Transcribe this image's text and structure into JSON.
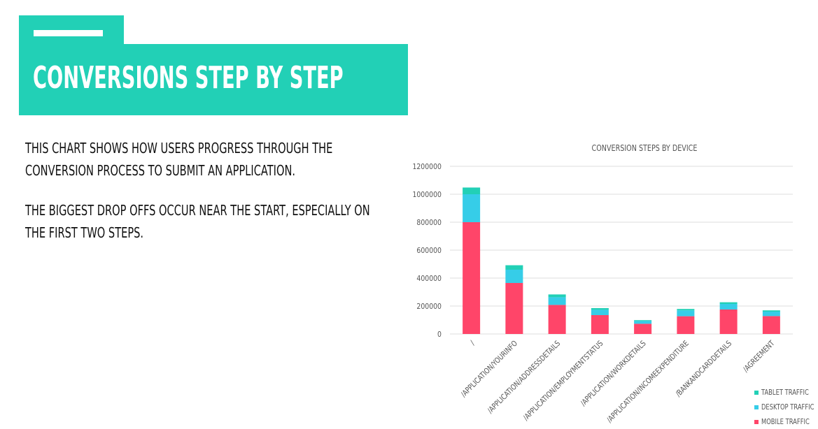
{
  "slide": {
    "title": "CONVERSIONS STEP BY STEP",
    "paragraphs": [
      "THIS CHART SHOWS HOW USERS PROGRESS THROUGH THE",
      "CONVERSION PROCESS TO SUBMIT AN APPLICATION.",
      "THE BIGGEST DROP OFFS OCCUR NEAR THE START, ESPECIALLY ON",
      "THE FIRST TWO STEPS."
    ],
    "accent_color": "#22d0b6"
  },
  "chart_data": {
    "type": "bar",
    "stacked": true,
    "title": "CONVERSION STEPS BY DEVICE",
    "categories": [
      "/",
      "/APPLICATION/YOURINFO",
      "/APPLICATION/ADDRESSDETAILS",
      "/APPLICATION/EMPLOYMENTSTATUS",
      "/APPLICATION/WORKDETAILS",
      "/APPLICATION/INCOMEEXPENDITURE",
      "/BANKANDCARDDETAILS",
      "/AGREEMENT"
    ],
    "series": [
      {
        "name": "MOBILE TRAFFIC",
        "color": "#ff4569",
        "values": [
          800000,
          365000,
          208000,
          135000,
          73000,
          127000,
          175000,
          128000
        ]
      },
      {
        "name": "DESKTOP TRAFFIC",
        "color": "#36cde8",
        "values": [
          200000,
          95000,
          55000,
          38000,
          20000,
          42000,
          40000,
          32000
        ]
      },
      {
        "name": "TABLET TRAFFIC",
        "color": "#22d0b6",
        "values": [
          48000,
          32000,
          20000,
          12000,
          6000,
          10000,
          12000,
          9000
        ]
      }
    ],
    "yticks": [
      0,
      200000,
      400000,
      600000,
      800000,
      1000000,
      1200000
    ],
    "ylim": [
      0,
      1200000
    ],
    "grid": true,
    "legend_position": "bottom-right"
  }
}
